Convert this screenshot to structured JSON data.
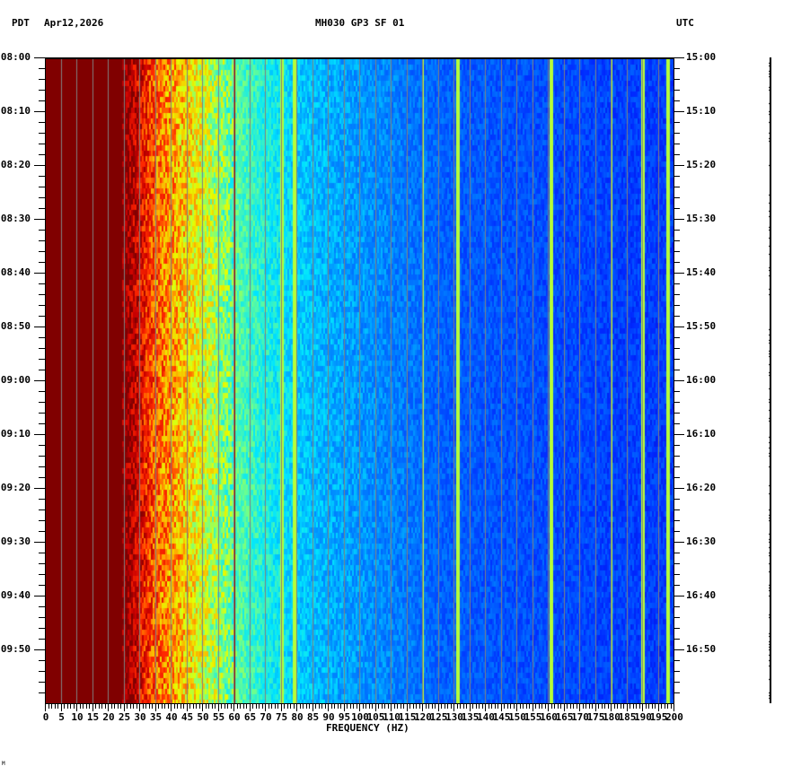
{
  "header": {
    "left_tz": "PDT",
    "date": "Apr12,2026",
    "station": "MH030 GP3 SF 01",
    "right_tz": "UTC"
  },
  "footer_mark": "M",
  "colors": {
    "background": "#ffffff",
    "axis": "#000000",
    "grid_lines": "#808080",
    "colormap": [
      "#800000",
      "#ff0000",
      "#ff8000",
      "#ffff00",
      "#80ff80",
      "#00ffff",
      "#0080ff",
      "#0000ff"
    ]
  },
  "chart_data": {
    "type": "heatmap",
    "title": "MH030 GP3 SF 01",
    "subtitle": "Apr12,2026",
    "xlabel": "FREQUENCY (HZ)",
    "ylabel_left": "PDT",
    "ylabel_right": "UTC",
    "xlim": [
      0,
      200
    ],
    "x_ticks": [
      0,
      5,
      10,
      15,
      20,
      25,
      30,
      35,
      40,
      45,
      50,
      55,
      60,
      65,
      70,
      75,
      80,
      85,
      90,
      95,
      100,
      105,
      110,
      115,
      120,
      125,
      130,
      135,
      140,
      145,
      150,
      155,
      160,
      165,
      170,
      175,
      180,
      185,
      190,
      195,
      200
    ],
    "x_minor_tick_step": 1,
    "y_ticks_left": [
      "08:00",
      "08:10",
      "08:20",
      "08:30",
      "08:40",
      "08:50",
      "09:00",
      "09:10",
      "09:20",
      "09:30",
      "09:40",
      "09:50"
    ],
    "y_ticks_right": [
      "15:00",
      "15:10",
      "15:20",
      "15:30",
      "15:40",
      "15:50",
      "16:00",
      "16:10",
      "16:20",
      "16:30",
      "16:40",
      "16:50"
    ],
    "y_minor_tick_minutes": 2,
    "time_span_minutes": 120,
    "grid": {
      "vertical_every_hz": 5
    },
    "power_profile_by_frequency": [
      {
        "range_hz": [
          0,
          25
        ],
        "level": "saturated",
        "color": "#800000"
      },
      {
        "range_hz": [
          25,
          35
        ],
        "level": "very high",
        "color": "#ff0000"
      },
      {
        "range_hz": [
          35,
          45
        ],
        "level": "high",
        "color": "#ffb000"
      },
      {
        "range_hz": [
          45,
          60
        ],
        "level": "medium-high",
        "color": "#c0ff40"
      },
      {
        "range_hz": [
          60,
          80
        ],
        "level": "medium",
        "color": "#00ffff"
      },
      {
        "range_hz": [
          80,
          120
        ],
        "level": "medium-low",
        "color": "#0090ff"
      },
      {
        "range_hz": [
          120,
          200
        ],
        "level": "low",
        "color": "#0040ff"
      }
    ],
    "narrowband_lines_hz": [
      60,
      75,
      79,
      120,
      131,
      161,
      180,
      190,
      198
    ]
  }
}
